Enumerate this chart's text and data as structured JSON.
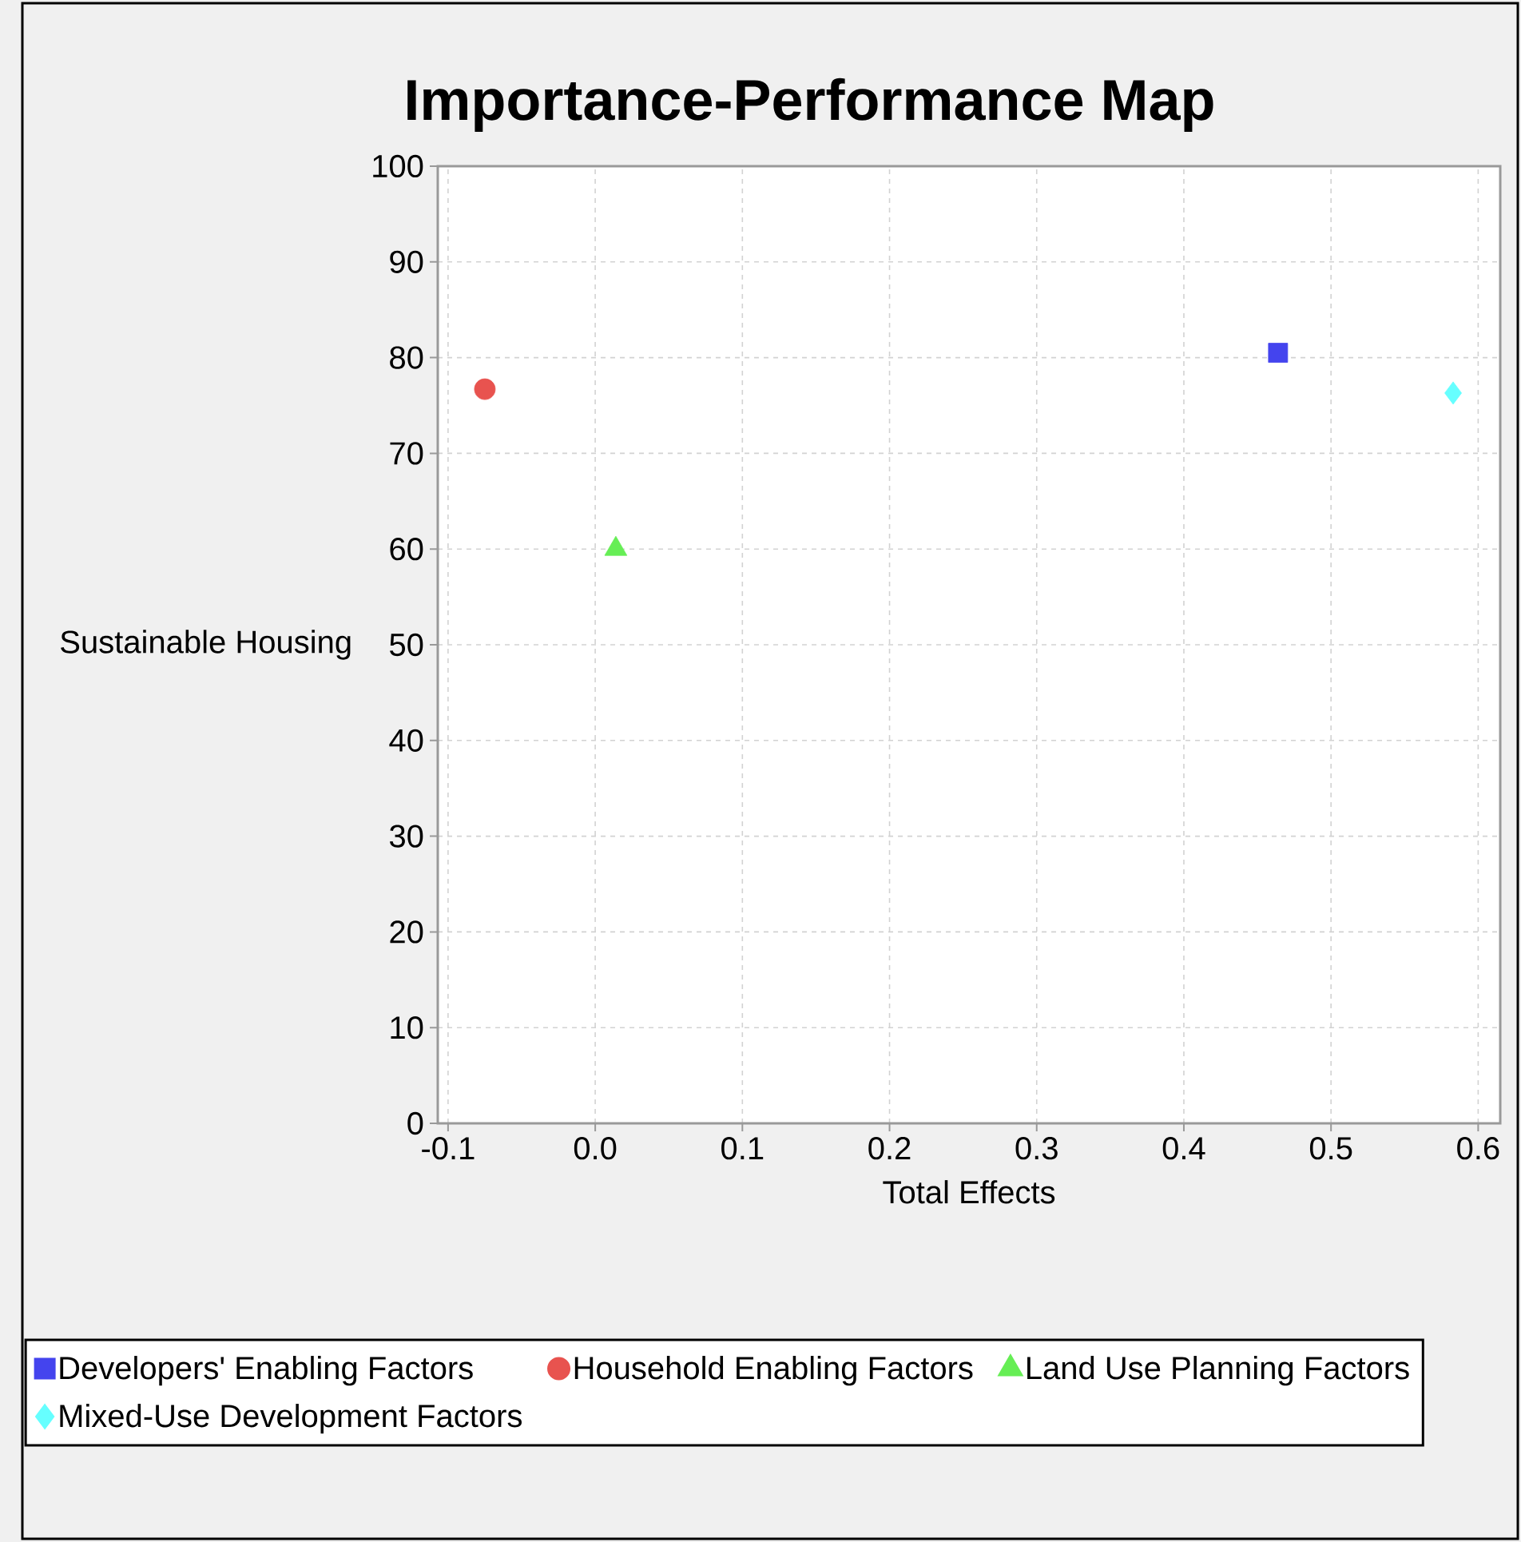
{
  "chart_data": {
    "type": "scatter",
    "title": "Importance-Performance Map",
    "xlabel": "Total Effects",
    "ylabel": "Sustainable Housing",
    "series": [
      {
        "name": "Developers' Enabling Factors",
        "color": "#4444ee",
        "marker": "square",
        "x": [
          0.464
        ],
        "values": [
          80.5
        ]
      },
      {
        "name": "Household Enabling Factors",
        "color": "#e8534f",
        "marker": "circle",
        "x": [
          -0.075
        ],
        "values": [
          76.7
        ]
      },
      {
        "name": "Land Use Planning Factors",
        "color": "#66ee55",
        "marker": "triangle",
        "x": [
          0.014
        ],
        "values": [
          60
        ]
      },
      {
        "name": "Mixed-Use Development Factors",
        "color": "#66ffff",
        "marker": "diamond",
        "x": [
          0.583
        ],
        "values": [
          76.3
        ]
      }
    ],
    "xlim": [
      -0.107,
      0.615
    ],
    "ylim": [
      0,
      100
    ],
    "xticks": [
      -0.1,
      {
        "value": 0,
        "label": "0.0"
      },
      0.1,
      0.2,
      0.3,
      0.4,
      0.5,
      0.6
    ],
    "yticks": [
      0,
      10,
      20,
      30,
      40,
      50,
      60,
      70,
      80,
      90,
      100
    ],
    "grid": true,
    "legend": "bottom"
  }
}
